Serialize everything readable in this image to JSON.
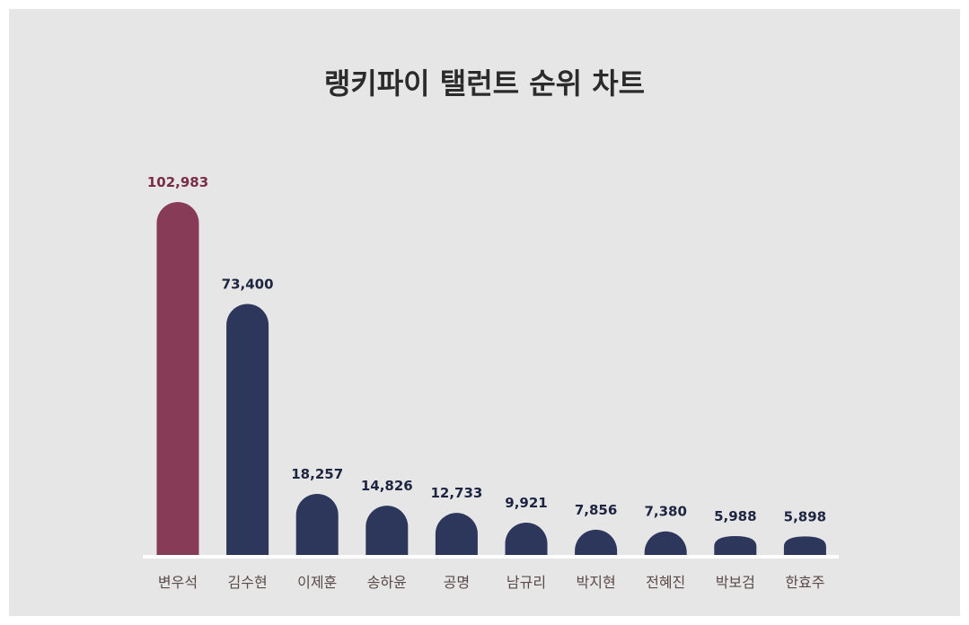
{
  "chart_data": {
    "type": "bar",
    "title": "랭키파이 탤런트 순위 차트",
    "xlabel": "",
    "ylabel": "",
    "categories": [
      "변우석",
      "김수현",
      "이제훈",
      "송하윤",
      "공명",
      "남규리",
      "박지현",
      "전혜진",
      "박보검",
      "한효주"
    ],
    "values": [
      102983,
      73400,
      18257,
      14826,
      12733,
      9921,
      7856,
      7380,
      5988,
      5898
    ],
    "value_labels": [
      "102,983",
      "73,400",
      "18,257",
      "14,826",
      "12,733",
      "9,921",
      "7,856",
      "7,380",
      "5,988",
      "5,898"
    ],
    "ylim": [
      0,
      102983
    ],
    "grid": false,
    "colors": {
      "highlight": "#873b57",
      "bar": "#2d375c",
      "highlight_label": "#7a2d48",
      "label": "#1e2541",
      "baseline": "#ffffff",
      "background": "#e6e6e6"
    }
  }
}
